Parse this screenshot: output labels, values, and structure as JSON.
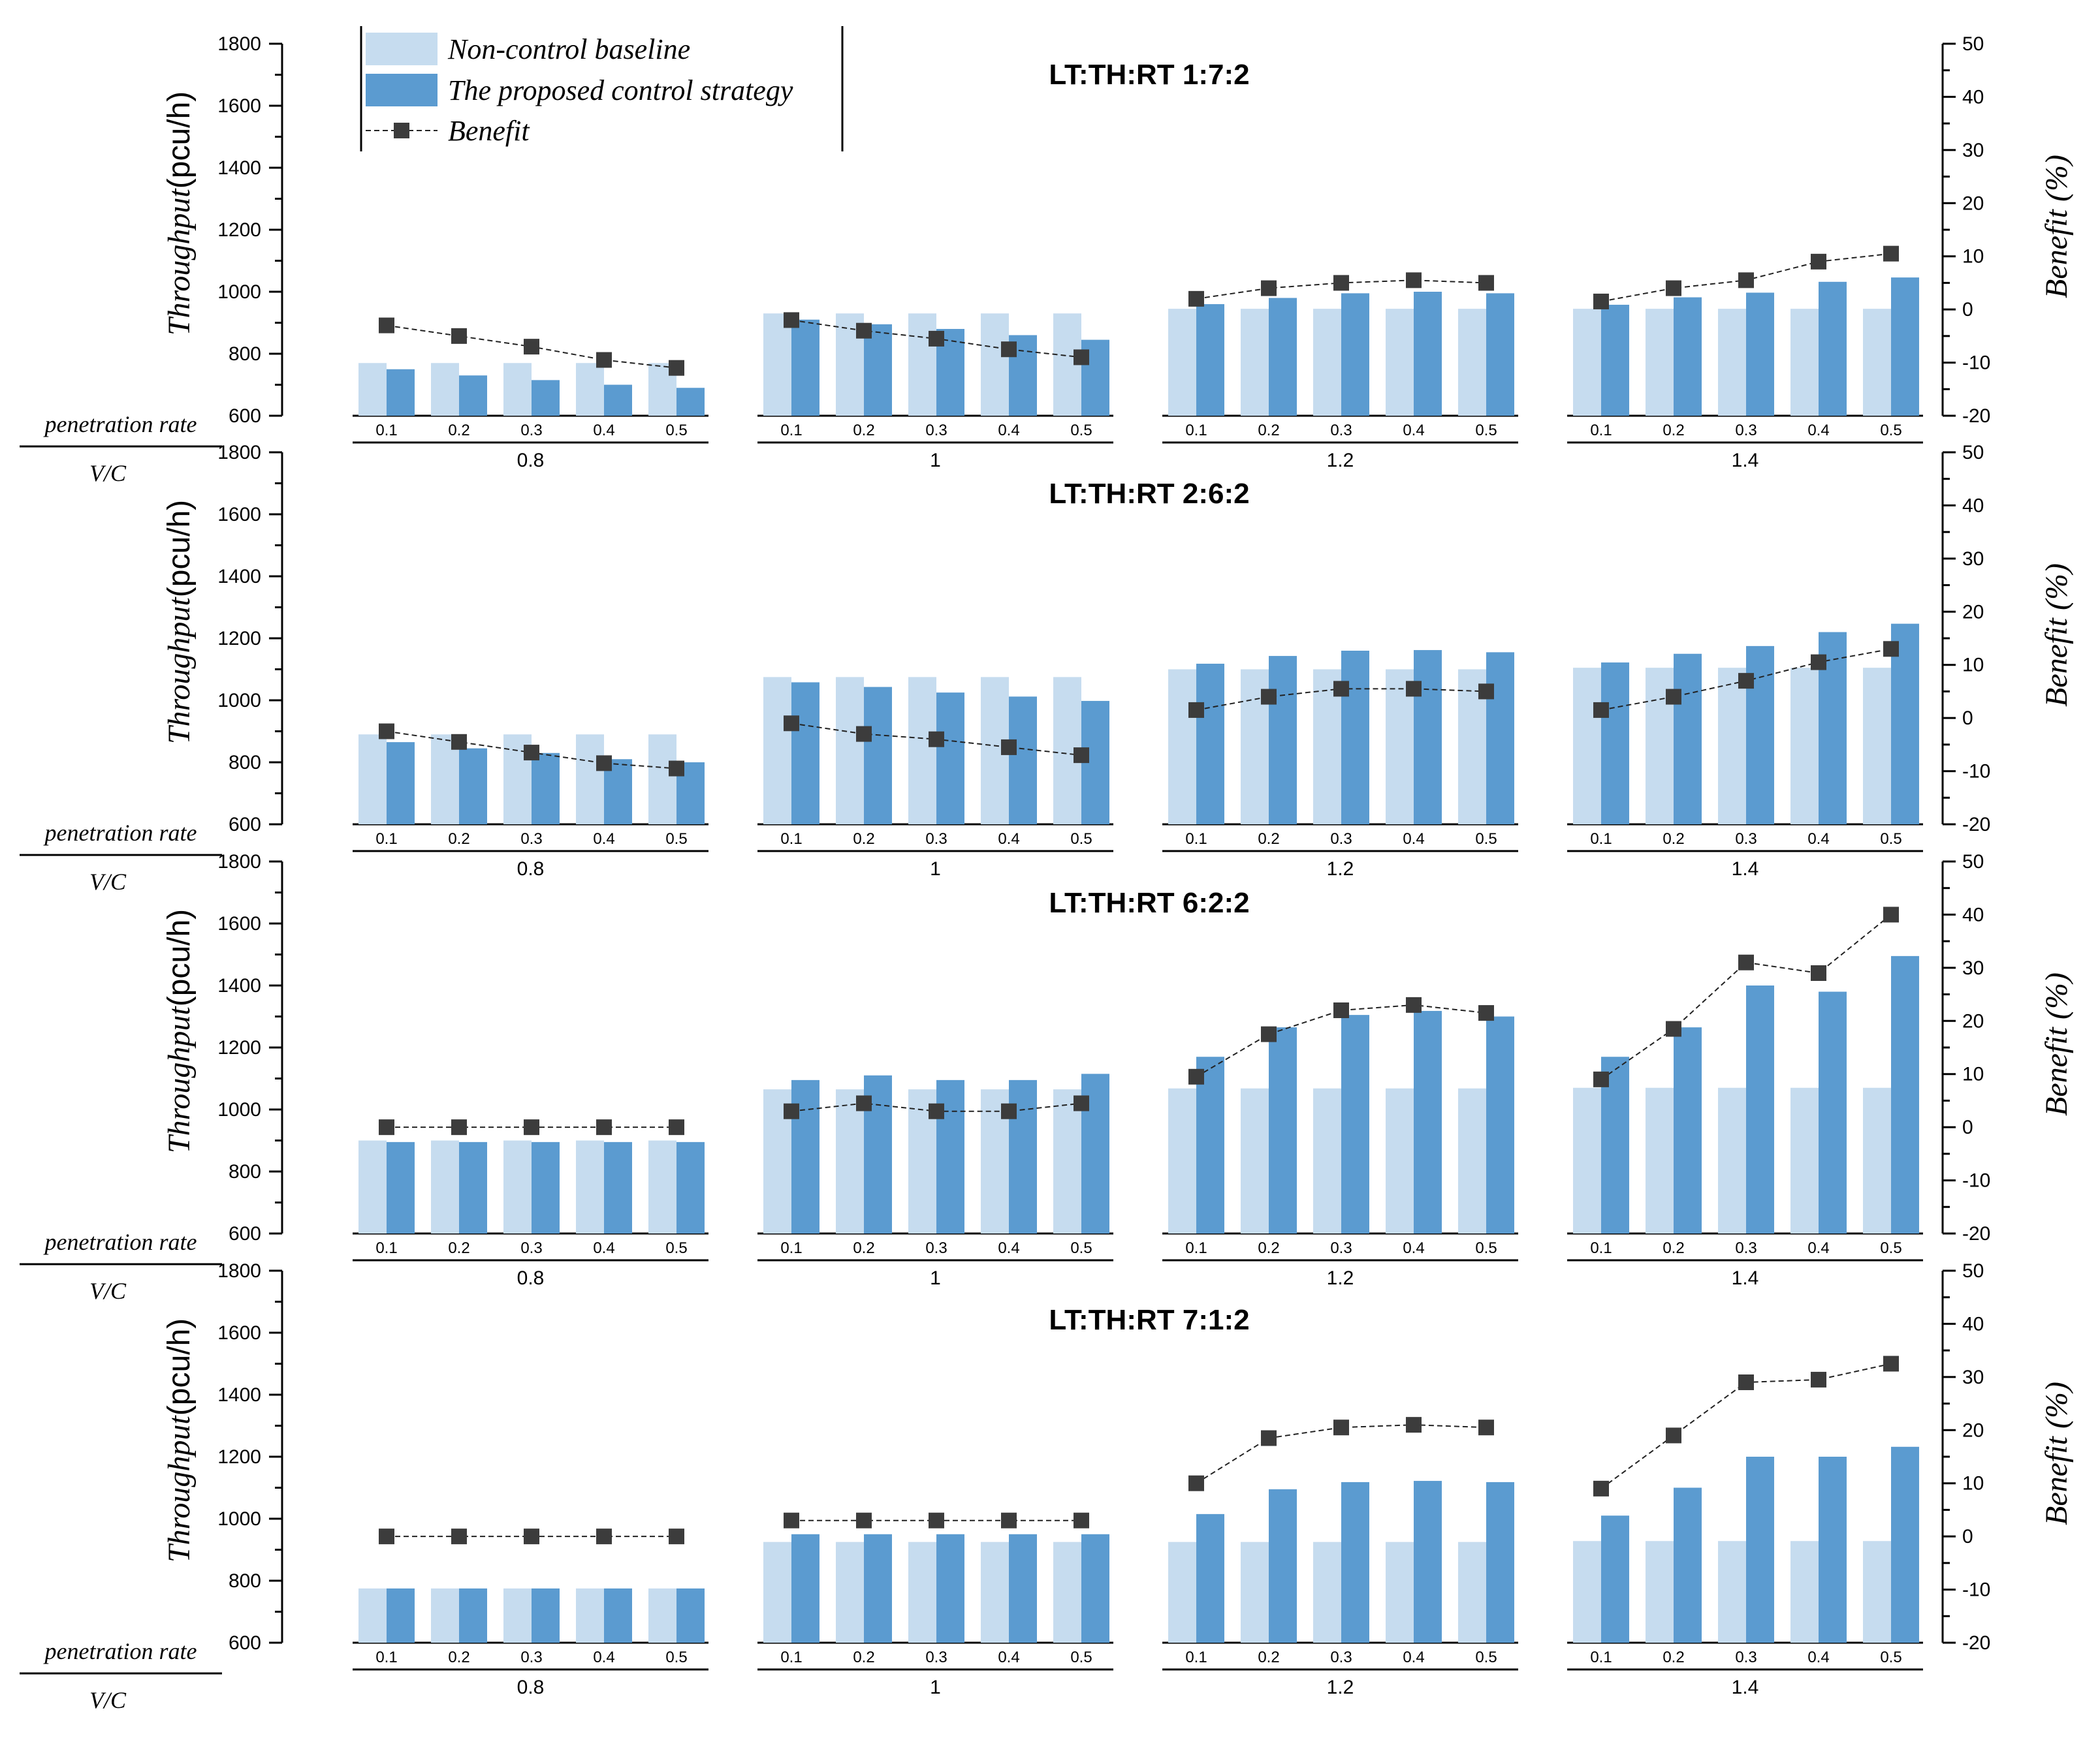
{
  "chart_data": [
    {
      "type": "bar",
      "title": "LT:TH:RT    1:7:2",
      "ylabel": "Throughput",
      "ylabel_unit": "(pcu/h)",
      "y2label": "Benefit (%)",
      "ylim": [
        600,
        1800
      ],
      "y2lim": [
        -20,
        50
      ],
      "yticks": [
        "600",
        "800",
        "1000",
        "1200",
        "1400",
        "1600",
        "1800"
      ],
      "y2ticks": [
        "-20",
        "-10",
        "0",
        "10",
        "20",
        "30",
        "40",
        "50"
      ],
      "corner_top": "penetration rate",
      "corner_bottom": "V/C",
      "penetration_rates": [
        "0.1",
        "0.2",
        "0.3",
        "0.4",
        "0.5"
      ],
      "groups": [
        "0.8",
        "1",
        "1.2",
        "1.4"
      ],
      "series": [
        {
          "name": "Non-control baseline",
          "color": "#c6dcef",
          "values": [
            [
              770,
              770,
              770,
              770,
              770
            ],
            [
              930,
              930,
              930,
              930,
              930
            ],
            [
              945,
              945,
              945,
              945,
              945
            ],
            [
              945,
              945,
              945,
              945,
              945
            ]
          ]
        },
        {
          "name": "The proposed control strategy",
          "color": "#5b9bd0",
          "values": [
            [
              750,
              730,
              715,
              700,
              690
            ],
            [
              910,
              895,
              880,
              860,
              845
            ],
            [
              960,
              980,
              995,
              1000,
              995
            ],
            [
              958,
              982,
              997,
              1032,
              1046
            ]
          ]
        },
        {
          "name": "Benefit",
          "color": "#3c3c3c",
          "values": [
            [
              -3,
              -5,
              -7,
              -9.5,
              -11
            ],
            [
              -2,
              -4,
              -5.5,
              -7.5,
              -9
            ],
            [
              2,
              4,
              5,
              5.5,
              5
            ],
            [
              1.5,
              4,
              5.5,
              9,
              10.5
            ]
          ]
        }
      ]
    },
    {
      "type": "bar",
      "title": "LT:TH:RT    2:6:2",
      "ylabel": "Throughput",
      "ylabel_unit": "(pcu/h)",
      "y2label": "Benefit (%)",
      "ylim": [
        600,
        1800
      ],
      "y2lim": [
        -20,
        50
      ],
      "yticks": [
        "600",
        "800",
        "1000",
        "1200",
        "1400",
        "1600",
        "1800"
      ],
      "y2ticks": [
        "-20",
        "-10",
        "0",
        "10",
        "20",
        "30",
        "40",
        "50"
      ],
      "corner_top": "penetration rate",
      "corner_bottom": "V/C",
      "penetration_rates": [
        "0.1",
        "0.2",
        "0.3",
        "0.4",
        "0.5"
      ],
      "groups": [
        "0.8",
        "1",
        "1.2",
        "1.4"
      ],
      "series": [
        {
          "name": "Non-control baseline",
          "color": "#c6dcef",
          "values": [
            [
              890,
              890,
              890,
              890,
              890
            ],
            [
              1075,
              1075,
              1075,
              1075,
              1075
            ],
            [
              1100,
              1100,
              1100,
              1100,
              1100
            ],
            [
              1105,
              1105,
              1105,
              1105,
              1105
            ]
          ]
        },
        {
          "name": "The proposed control strategy",
          "color": "#5b9bd0",
          "values": [
            [
              865,
              845,
              830,
              810,
              800
            ],
            [
              1058,
              1043,
              1025,
              1012,
              998
            ],
            [
              1118,
              1143,
              1160,
              1162,
              1155
            ],
            [
              1122,
              1150,
              1175,
              1220,
              1247
            ]
          ]
        },
        {
          "name": "Benefit",
          "color": "#3c3c3c",
          "values": [
            [
              -2.5,
              -4.5,
              -6.5,
              -8.5,
              -9.5
            ],
            [
              -1,
              -3,
              -4,
              -5.5,
              -7
            ],
            [
              1.5,
              4,
              5.5,
              5.5,
              5
            ],
            [
              1.5,
              4,
              7,
              10.5,
              13
            ]
          ]
        }
      ]
    },
    {
      "type": "bar",
      "title": "LT:TH:RT    6:2:2",
      "ylabel": "Throughput",
      "ylabel_unit": "(pcu/h)",
      "y2label": "Benefit (%)",
      "ylim": [
        600,
        1800
      ],
      "y2lim": [
        -20,
        50
      ],
      "yticks": [
        "600",
        "800",
        "1000",
        "1200",
        "1400",
        "1600",
        "1800"
      ],
      "y2ticks": [
        "-20",
        "-10",
        "0",
        "10",
        "20",
        "30",
        "40",
        "50"
      ],
      "corner_top": "penetration rate",
      "corner_bottom": "V/C",
      "penetration_rates": [
        "0.1",
        "0.2",
        "0.3",
        "0.4",
        "0.5"
      ],
      "groups": [
        "0.8",
        "1",
        "1.2",
        "1.4"
      ],
      "series": [
        {
          "name": "Non-control baseline",
          "color": "#c6dcef",
          "values": [
            [
              900,
              900,
              900,
              900,
              900
            ],
            [
              1065,
              1065,
              1065,
              1065,
              1065
            ],
            [
              1068,
              1068,
              1068,
              1068,
              1068
            ],
            [
              1070,
              1070,
              1070,
              1070,
              1070
            ]
          ]
        },
        {
          "name": "The proposed control strategy",
          "color": "#5b9bd0",
          "values": [
            [
              895,
              895,
              895,
              895,
              895
            ],
            [
              1095,
              1110,
              1095,
              1095,
              1115
            ],
            [
              1170,
              1265,
              1305,
              1318,
              1300
            ],
            [
              1170,
              1265,
              1400,
              1380,
              1495
            ]
          ]
        },
        {
          "name": "Benefit",
          "color": "#3c3c3c",
          "values": [
            [
              0,
              0,
              0,
              0,
              0
            ],
            [
              3,
              4.5,
              3,
              3,
              4.5
            ],
            [
              9.5,
              17.5,
              22,
              23,
              21.5
            ],
            [
              9,
              18.5,
              31,
              29,
              40
            ]
          ]
        }
      ]
    },
    {
      "type": "bar",
      "title": "LT:TH:RT    7:1:2",
      "ylabel": "Throughput",
      "ylabel_unit": "(pcu/h)",
      "y2label": "Benefit (%)",
      "ylim": [
        600,
        1800
      ],
      "y2lim": [
        -20,
        50
      ],
      "yticks": [
        "600",
        "800",
        "1000",
        "1200",
        "1400",
        "1600",
        "1800"
      ],
      "y2ticks": [
        "-20",
        "-10",
        "0",
        "10",
        "20",
        "30",
        "40",
        "50"
      ],
      "corner_top": "penetration rate",
      "corner_bottom": "V/C",
      "penetration_rates": [
        "0.1",
        "0.2",
        "0.3",
        "0.4",
        "0.5"
      ],
      "groups": [
        "0.8",
        "1",
        "1.2",
        "1.4"
      ],
      "series": [
        {
          "name": "Non-control baseline",
          "color": "#c6dcef",
          "values": [
            [
              775,
              775,
              775,
              775,
              775
            ],
            [
              925,
              925,
              925,
              925,
              925
            ],
            [
              925,
              925,
              925,
              925,
              925
            ],
            [
              928,
              928,
              928,
              928,
              928
            ]
          ]
        },
        {
          "name": "The proposed control strategy",
          "color": "#5b9bd0",
          "values": [
            [
              775,
              775,
              775,
              775,
              775
            ],
            [
              950,
              950,
              950,
              950,
              950
            ],
            [
              1015,
              1095,
              1118,
              1122,
              1118
            ],
            [
              1010,
              1100,
              1200,
              1200,
              1232
            ]
          ]
        },
        {
          "name": "Benefit",
          "color": "#3c3c3c",
          "values": [
            [
              0,
              0,
              0,
              0,
              0
            ],
            [
              3,
              3,
              3,
              3,
              3
            ],
            [
              10,
              18.5,
              20.5,
              21,
              20.5
            ],
            [
              9,
              19,
              29,
              29.5,
              32.5
            ]
          ]
        }
      ]
    }
  ],
  "legend": {
    "items": [
      {
        "label": "Non-control baseline",
        "color": "#c6dcef",
        "kind": "bar"
      },
      {
        "label": "The proposed control strategy",
        "color": "#5b9bd0",
        "kind": "bar"
      },
      {
        "label": "Benefit",
        "color": "#3c3c3c",
        "kind": "line-square"
      }
    ]
  }
}
